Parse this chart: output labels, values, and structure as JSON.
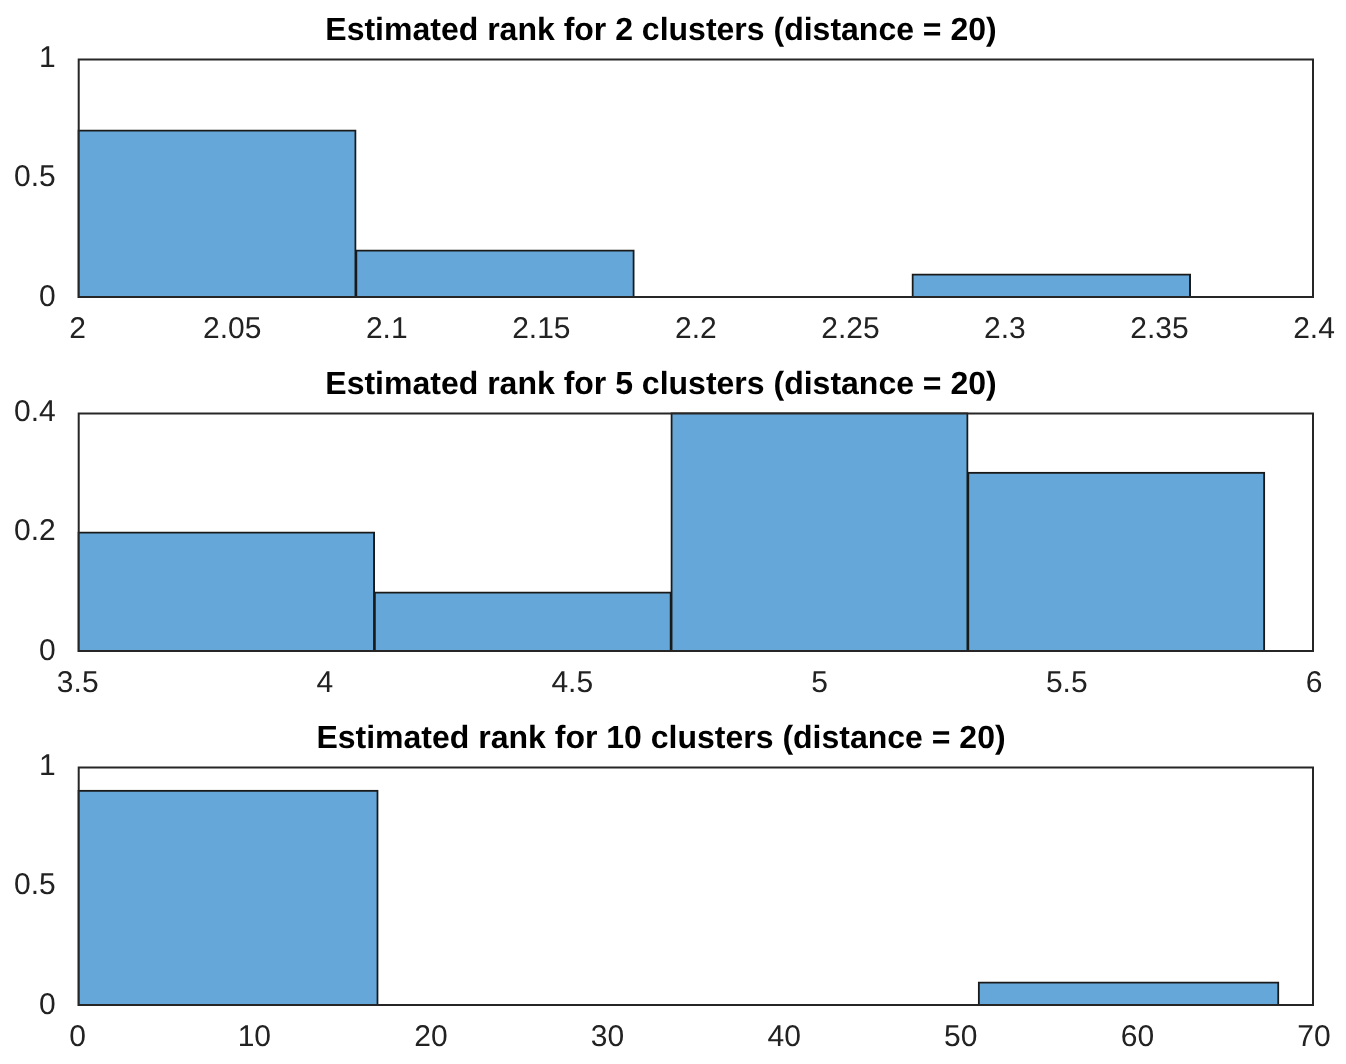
{
  "chart_data": [
    {
      "type": "histogram",
      "title": "Estimated rank for 2 clusters (distance = 20)",
      "bins": [
        2,
        2.09,
        2.18,
        2.27,
        2.36
      ],
      "values": [
        0.7,
        0.2,
        0,
        0.1
      ],
      "color": "#65a7d9",
      "xlim": [
        2,
        2.4
      ],
      "xticks": [
        2,
        2.05,
        2.1,
        2.15,
        2.2,
        2.25,
        2.3,
        2.35,
        2.4
      ],
      "ylim": [
        0,
        1
      ],
      "yticks": [
        0,
        0.5,
        1
      ]
    },
    {
      "type": "histogram",
      "title": "Estimated rank for 5 clusters (distance = 20)",
      "bins": [
        3.5,
        4.1,
        4.7,
        5.3,
        5.9
      ],
      "values": [
        0.2,
        0.1,
        0.4,
        0.3
      ],
      "color": "#65a7d9",
      "xlim": [
        3.5,
        6
      ],
      "xticks": [
        3.5,
        4,
        4.5,
        5,
        5.5,
        6
      ],
      "ylim": [
        0,
        0.4
      ],
      "yticks": [
        0,
        0.2,
        0.4
      ]
    },
    {
      "type": "histogram",
      "title": "Estimated rank for 10 clusters (distance = 20)",
      "bins": [
        0,
        17,
        34,
        51,
        68
      ],
      "values": [
        0.9,
        0,
        0,
        0.1
      ],
      "color": "#65a7d9",
      "xlim": [
        0,
        70
      ],
      "xticks": [
        0,
        10,
        20,
        30,
        40,
        50,
        60,
        70
      ],
      "ylim": [
        0,
        1
      ],
      "yticks": [
        0,
        0.5,
        1
      ]
    }
  ]
}
